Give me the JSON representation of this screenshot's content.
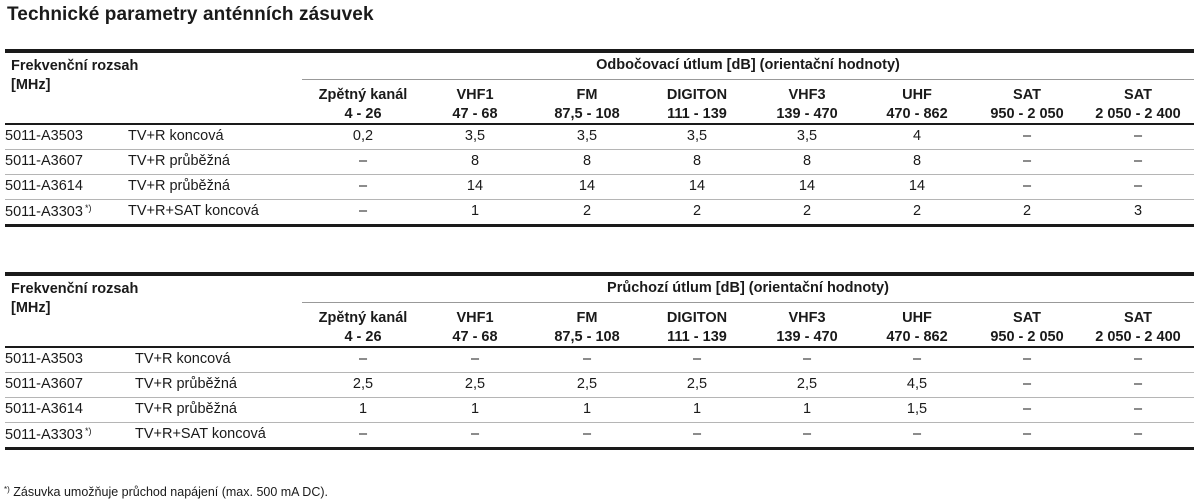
{
  "title": "Technické parametry anténních zásuvek",
  "columns": [
    {
      "name": "Zpětný kanál",
      "range": "4 - 26"
    },
    {
      "name": "VHF1",
      "range": "47 - 68"
    },
    {
      "name": "FM",
      "range": "87,5 - 108"
    },
    {
      "name": "DIGITON",
      "range": "111 - 139"
    },
    {
      "name": "VHF3",
      "range": "139 - 470"
    },
    {
      "name": "UHF",
      "range": "470 - 862"
    },
    {
      "name": "SAT",
      "range": "950 - 2 050"
    },
    {
      "name": "SAT",
      "range": "2 050 - 2 400"
    }
  ],
  "tables": [
    {
      "row_header_line1": "Frekvenční rozsah",
      "row_header_line2": "[MHz]",
      "group_title": "Odbočovací útlum [dB] (orientační hodnoty)",
      "rows": [
        {
          "code": "5011-A3503",
          "mark": "",
          "desc": "TV+R koncová",
          "values": [
            "0,2",
            "3,5",
            "3,5",
            "3,5",
            "3,5",
            "4",
            "–",
            "–"
          ]
        },
        {
          "code": "5011-A3607",
          "mark": "",
          "desc": "TV+R průběžná",
          "values": [
            "–",
            "8",
            "8",
            "8",
            "8",
            "8",
            "–",
            "–"
          ]
        },
        {
          "code": "5011-A3614",
          "mark": "",
          "desc": "TV+R průběžná",
          "values": [
            "–",
            "14",
            "14",
            "14",
            "14",
            "14",
            "–",
            "–"
          ]
        },
        {
          "code": "5011-A3303",
          "mark": "*)",
          "desc": "TV+R+SAT koncová",
          "values": [
            "–",
            "1",
            "2",
            "2",
            "2",
            "2",
            "2",
            "3"
          ]
        }
      ]
    },
    {
      "row_header_line1": "Frekvenční rozsah",
      "row_header_line2": "[MHz]",
      "group_title": "Průchozí útlum [dB] (orientační hodnoty)",
      "rows": [
        {
          "code": "5011-A3503",
          "mark": "",
          "desc": "TV+R koncová",
          "values": [
            "–",
            "–",
            "–",
            "–",
            "–",
            "–",
            "–",
            "–"
          ]
        },
        {
          "code": "5011-A3607",
          "mark": "",
          "desc": "TV+R průběžná",
          "values": [
            "2,5",
            "2,5",
            "2,5",
            "2,5",
            "2,5",
            "4,5",
            "–",
            "–"
          ]
        },
        {
          "code": "5011-A3614",
          "mark": "",
          "desc": "TV+R průběžná",
          "values": [
            "1",
            "1",
            "1",
            "1",
            "1",
            "1,5",
            "–",
            "–"
          ]
        },
        {
          "code": "5011-A3303",
          "mark": "*)",
          "desc": "TV+R+SAT koncová",
          "values": [
            "–",
            "–",
            "–",
            "–",
            "–",
            "–",
            "–",
            "–"
          ]
        }
      ]
    }
  ],
  "footnote_mark": "*)",
  "footnote_text": " Zásuvka umožňuje průchod napájení (max. 500 mA DC)."
}
